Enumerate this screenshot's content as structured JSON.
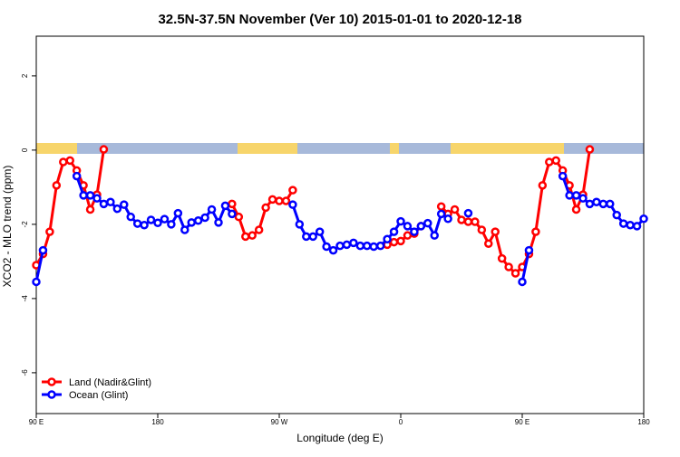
{
  "chart_data": {
    "type": "line",
    "title": "32.5N-37.5N November (Ver 10)   2015-01-01 to 2020-12-18",
    "x_label": "Longitude (deg E)",
    "y_label": "XCO2 - MLO trend (ppm)",
    "x": [
      90,
      95,
      100,
      105,
      110,
      115,
      120,
      125,
      130,
      135,
      140,
      145,
      150,
      155,
      160,
      165,
      170,
      175,
      180,
      185,
      190,
      195,
      200,
      205,
      210,
      215,
      220,
      225,
      230,
      235,
      240,
      245,
      250,
      255,
      260,
      265,
      270,
      275,
      280,
      285,
      290,
      295,
      300,
      305,
      310,
      315,
      320,
      325,
      330,
      335,
      340,
      345,
      350,
      355,
      360,
      365,
      370,
      375,
      380,
      385,
      390,
      395,
      400,
      405,
      410,
      415,
      420,
      425,
      430,
      435,
      440,
      445,
      450,
      455,
      460,
      465,
      470,
      475,
      480,
      485,
      490,
      495,
      500,
      505,
      510,
      515,
      520,
      525,
      530,
      535,
      540
    ],
    "series": [
      {
        "name": "Land (Nadir&Glint)",
        "color": "#ff0000",
        "values": [
          -3.1,
          -2.8,
          -2.2,
          -0.95,
          -0.32,
          -0.28,
          -0.55,
          -0.95,
          -1.6,
          -1.2,
          0.02,
          null,
          null,
          null,
          null,
          null,
          null,
          null,
          null,
          null,
          null,
          null,
          null,
          null,
          null,
          null,
          null,
          null,
          null,
          -1.45,
          -1.8,
          -2.33,
          -2.3,
          -2.15,
          -1.55,
          -1.33,
          -1.37,
          -1.37,
          -1.08,
          null,
          null,
          null,
          null,
          null,
          null,
          null,
          null,
          null,
          null,
          null,
          null,
          null,
          -2.55,
          -2.48,
          -2.45,
          -2.3,
          -2.25,
          -2.05,
          null,
          null,
          -1.52,
          -1.72,
          -1.6,
          -1.88,
          -1.93,
          -1.93,
          -2.15,
          -2.52,
          -2.2,
          -2.92,
          -3.15,
          -3.32,
          -3.15,
          -2.8,
          -2.2,
          -0.95,
          -0.32,
          -0.28,
          -0.55,
          -0.95,
          -1.6,
          -1.2,
          0.02,
          null,
          null,
          null,
          null,
          null,
          null,
          null,
          null
        ]
      },
      {
        "name": "Ocean (Glint)",
        "color": "#0000ff",
        "values": [
          -3.55,
          -2.7,
          null,
          null,
          null,
          null,
          -0.7,
          -1.22,
          -1.22,
          -1.3,
          -1.45,
          -1.4,
          -1.58,
          -1.47,
          -1.8,
          -1.98,
          -2.02,
          -1.88,
          -1.96,
          -1.86,
          -2.0,
          -1.7,
          -2.15,
          -1.95,
          -1.9,
          -1.82,
          -1.6,
          -1.95,
          -1.5,
          -1.72,
          null,
          null,
          null,
          null,
          null,
          null,
          null,
          null,
          -1.47,
          -2.0,
          -2.33,
          -2.33,
          -2.2,
          -2.6,
          -2.7,
          -2.58,
          -2.55,
          -2.5,
          -2.58,
          -2.58,
          -2.6,
          -2.58,
          -2.4,
          -2.2,
          -1.92,
          -2.05,
          -2.2,
          -2.05,
          -1.97,
          -2.3,
          -1.72,
          -1.85,
          null,
          null,
          -1.7,
          null,
          null,
          null,
          null,
          null,
          null,
          null,
          -3.55,
          -2.7,
          null,
          null,
          null,
          null,
          -0.7,
          -1.22,
          -1.22,
          -1.3,
          -1.45,
          -1.4,
          -1.45,
          -1.45,
          -1.75,
          -1.98,
          -2.02,
          -2.05,
          -1.85
        ]
      }
    ],
    "xlim": [
      90,
      540
    ],
    "xticks": [
      {
        "value": 90,
        "label": "90 E"
      },
      180,
      {
        "value": 270,
        "label": "90 W"
      },
      {
        "value": 360,
        "label": "0"
      },
      {
        "value": 450,
        "label": "90 E"
      },
      {
        "value": 540,
        "label": "180"
      }
    ],
    "ylim": [
      -7.1,
      3.07
    ],
    "yticks": [
      -6,
      -4,
      -2,
      0,
      2
    ],
    "legend": "bottom-left"
  }
}
